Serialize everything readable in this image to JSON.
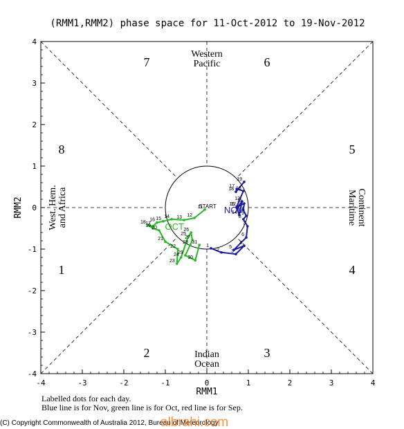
{
  "chart_data": {
    "type": "line",
    "title": "(RMM1,RMM2) phase space for 11-Oct-2012 to 19-Nov-2012",
    "xlabel": "RMM1",
    "ylabel": "RMM2",
    "xlim": [
      -4,
      4
    ],
    "ylim": [
      -4,
      4
    ],
    "x_ticks": [
      "-4",
      "-3",
      "-2",
      "-1",
      "0",
      "1",
      "2",
      "3",
      "4"
    ],
    "y_ticks": [
      "-4",
      "-3",
      "-2",
      "-1",
      "0",
      "1",
      "2",
      "3",
      "4"
    ],
    "phase_numbers": [
      {
        "label": "7",
        "x": -1.45,
        "y": 3.5
      },
      {
        "label": "6",
        "x": 1.45,
        "y": 3.5
      },
      {
        "label": "8",
        "x": -3.5,
        "y": 1.4
      },
      {
        "label": "5",
        "x": 3.5,
        "y": 1.4
      },
      {
        "label": "1",
        "x": -3.5,
        "y": -1.5
      },
      {
        "label": "4",
        "x": 3.5,
        "y": -1.5
      },
      {
        "label": "2",
        "x": -1.45,
        "y": -3.5
      },
      {
        "label": "3",
        "x": 1.45,
        "y": -3.5
      }
    ],
    "region_labels": {
      "top": [
        "Western",
        "Pacific"
      ],
      "bottom": [
        "Indian",
        "Ocean"
      ],
      "left": [
        "West. Hem.",
        "and Africa"
      ],
      "right": [
        "Maritime",
        "Continent"
      ]
    },
    "start_label": "START",
    "month_labels": [
      {
        "text": "OCT",
        "color": "#22bb22",
        "x": -0.78,
        "y": -0.45
      },
      {
        "text": "NOV",
        "color": "#1a1aa8",
        "x": 0.65,
        "y": -0.05
      }
    ],
    "series": [
      {
        "name": "Oct",
        "color": "#22bb22",
        "points": [
          {
            "x": -0.05,
            "y": -0.05,
            "label": "11"
          },
          {
            "x": -0.3,
            "y": -0.25,
            "label": "12"
          },
          {
            "x": -0.55,
            "y": -0.3,
            "label": "13"
          },
          {
            "x": -0.85,
            "y": -0.28,
            "label": "14"
          },
          {
            "x": -1.05,
            "y": -0.33,
            "label": "15"
          },
          {
            "x": -1.2,
            "y": -0.36,
            "label": "16"
          },
          {
            "x": -1.3,
            "y": -0.45,
            "label": "17"
          },
          {
            "x": -1.42,
            "y": -0.42,
            "label": "18"
          },
          {
            "x": -1.3,
            "y": -0.5,
            "label": "19"
          },
          {
            "x": -1.15,
            "y": -0.55,
            "label": "20"
          },
          {
            "x": -1.0,
            "y": -0.82,
            "label": "21"
          },
          {
            "x": -0.7,
            "y": -1.0,
            "label": "22"
          },
          {
            "x": -0.72,
            "y": -1.35,
            "label": "23"
          },
          {
            "x": -0.62,
            "y": -1.2,
            "label": "24"
          },
          {
            "x": -0.45,
            "y": -0.7,
            "label": "25"
          },
          {
            "x": -0.38,
            "y": -0.6,
            "label": "26"
          },
          {
            "x": -0.35,
            "y": -0.78,
            "label": "27"
          },
          {
            "x": -0.4,
            "y": -0.9,
            "label": "28"
          },
          {
            "x": -0.52,
            "y": -1.15,
            "label": "29"
          },
          {
            "x": -0.28,
            "y": -1.27,
            "label": "30"
          },
          {
            "x": -0.18,
            "y": -0.9,
            "label": "31"
          }
        ]
      },
      {
        "name": "Nov",
        "color": "#1a1aa8",
        "points": [
          {
            "x": 0.1,
            "y": -0.98,
            "label": "1"
          },
          {
            "x": 0.35,
            "y": -1.08,
            "label": "2"
          },
          {
            "x": 0.7,
            "y": -1.12,
            "label": "3"
          },
          {
            "x": 0.9,
            "y": -0.92,
            "label": "4"
          },
          {
            "x": 0.65,
            "y": -1.02,
            "label": "5"
          },
          {
            "x": 0.95,
            "y": -0.72,
            "label": "6"
          },
          {
            "x": 0.98,
            "y": -0.45,
            "label": "7"
          },
          {
            "x": 0.88,
            "y": -0.28,
            "label": "8"
          },
          {
            "x": 0.95,
            "y": -0.2,
            "label": "9"
          },
          {
            "x": 0.88,
            "y": -0.06,
            "label": "10"
          },
          {
            "x": 0.9,
            "y": 0.1,
            "label": "11"
          },
          {
            "x": 0.75,
            "y": 0.02,
            "label": "12"
          },
          {
            "x": 0.85,
            "y": 0.15,
            "label": "13"
          },
          {
            "x": 0.78,
            "y": -0.18,
            "label": "14"
          },
          {
            "x": 0.72,
            "y": 0.02,
            "label": "15"
          },
          {
            "x": 0.88,
            "y": 0.4,
            "label": "16"
          },
          {
            "x": 0.72,
            "y": 0.45,
            "label": "17"
          },
          {
            "x": 0.7,
            "y": 0.38,
            "label": "18"
          },
          {
            "x": 0.9,
            "y": 0.62,
            "label": "19"
          }
        ]
      }
    ]
  },
  "footer": {
    "line1": "Labelled dots for each day.",
    "line2": "Blue line is for Nov, green line is for Oct, red line is for Sep.",
    "copyright": "(C) Copyright Commonwealth of Australia 2012, Bureau of Meteorology",
    "watermark": "albrahi.com"
  }
}
